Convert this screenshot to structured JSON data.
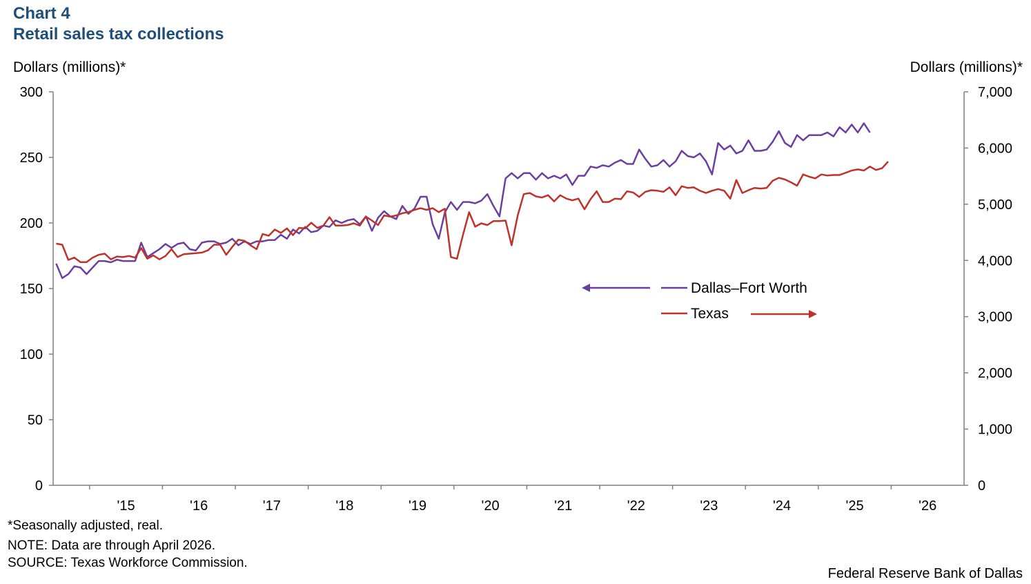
{
  "header": {
    "chart_number": "Chart 4",
    "title": "Retail sales tax collections"
  },
  "footer": {
    "note1": "*Seasonally adjusted,  real.",
    "note2": "NOTE: Data are through  April 2026.",
    "source": "SOURCE: Texas Workforce Commission.",
    "credit": "Federal Reserve Bank of Dallas"
  },
  "chart_data": {
    "type": "line",
    "title": "Retail sales tax collections",
    "y_left_label": "Dollars (millions)*",
    "y_right_label": "Dollars (millions)*",
    "y_left_lim": [
      0,
      300
    ],
    "y_left_ticks": [
      "0",
      "50",
      "100",
      "150",
      "200",
      "250",
      "300"
    ],
    "y_right_lim": [
      0,
      7000
    ],
    "y_right_ticks": [
      "0",
      "1,000",
      "2,000",
      "3,000",
      "4,000",
      "5,000",
      "6,000",
      "7,000"
    ],
    "x_range": [
      "2014-07",
      "2026-12"
    ],
    "x_ticks": [
      "'15",
      "'16",
      "'17",
      "'18",
      "'19",
      "'20",
      "'21",
      "'22",
      "'23",
      "'24",
      "'25",
      "'26"
    ],
    "grid": false,
    "legend_position": "center-right",
    "series": [
      {
        "name": "Dallas–Fort Worth",
        "axis": "left",
        "color": "#6b3fa0",
        "start": "2014-07",
        "values": [
          169,
          158,
          161,
          167,
          166,
          161,
          166,
          171,
          171,
          170,
          172,
          171,
          171,
          171,
          185,
          174,
          177,
          180,
          184,
          181,
          184,
          185,
          180,
          179,
          185,
          186,
          186,
          184,
          185,
          188,
          183,
          186,
          184,
          186,
          186,
          187,
          187,
          191,
          188,
          195,
          192,
          197,
          193,
          194,
          198,
          197,
          202,
          200,
          202,
          203,
          199,
          205,
          194,
          204,
          209,
          205,
          203,
          213,
          207,
          211,
          220,
          220,
          199,
          188,
          208,
          216,
          210,
          216,
          216,
          215,
          217,
          222,
          213,
          205,
          234,
          238,
          234,
          238,
          238,
          233,
          238,
          234,
          236,
          234,
          237,
          229,
          236,
          236,
          243,
          242,
          244,
          243,
          246,
          248,
          245,
          245,
          256,
          249,
          243,
          244,
          248,
          243,
          247,
          255,
          251,
          250,
          253,
          247,
          237,
          261,
          256,
          259,
          253,
          255,
          263,
          255,
          255,
          256,
          262,
          270,
          261,
          258,
          267,
          263,
          267,
          267,
          267,
          269,
          266,
          273,
          269,
          275,
          269,
          276,
          269
        ]
      },
      {
        "name": "Texas",
        "axis": "right",
        "color": "#c0312b",
        "start": "2014-07",
        "values": [
          4300,
          4280,
          4010,
          4050,
          3970,
          3970,
          4050,
          4100,
          4120,
          4020,
          4070,
          4060,
          4080,
          4050,
          4220,
          4030,
          4090,
          4020,
          4080,
          4200,
          4060,
          4110,
          4120,
          4130,
          4140,
          4180,
          4280,
          4280,
          4100,
          4240,
          4370,
          4350,
          4270,
          4200,
          4470,
          4440,
          4550,
          4490,
          4570,
          4450,
          4580,
          4570,
          4670,
          4580,
          4620,
          4770,
          4620,
          4620,
          4630,
          4660,
          4620,
          4780,
          4710,
          4630,
          4800,
          4780,
          4800,
          4840,
          4860,
          4900,
          4930,
          4900,
          4930,
          4860,
          4920,
          4060,
          4030,
          4460,
          4860,
          4600,
          4660,
          4630,
          4700,
          4700,
          4710,
          4270,
          4800,
          5180,
          5200,
          5140,
          5120,
          5160,
          5050,
          5160,
          5100,
          5070,
          5100,
          4910,
          5090,
          5230,
          5040,
          5040,
          5100,
          5090,
          5230,
          5210,
          5130,
          5220,
          5250,
          5240,
          5220,
          5300,
          5160,
          5320,
          5290,
          5300,
          5240,
          5200,
          5240,
          5270,
          5240,
          5100,
          5430,
          5200,
          5250,
          5290,
          5280,
          5290,
          5420,
          5470,
          5440,
          5390,
          5330,
          5530,
          5490,
          5460,
          5530,
          5510,
          5520,
          5520,
          5560,
          5600,
          5620,
          5600,
          5670,
          5610,
          5640,
          5760
        ]
      }
    ],
    "annotations": [
      {
        "text": "Dallas–Fort Worth",
        "arrow": "left"
      },
      {
        "text": "Texas",
        "arrow": "right"
      }
    ]
  }
}
